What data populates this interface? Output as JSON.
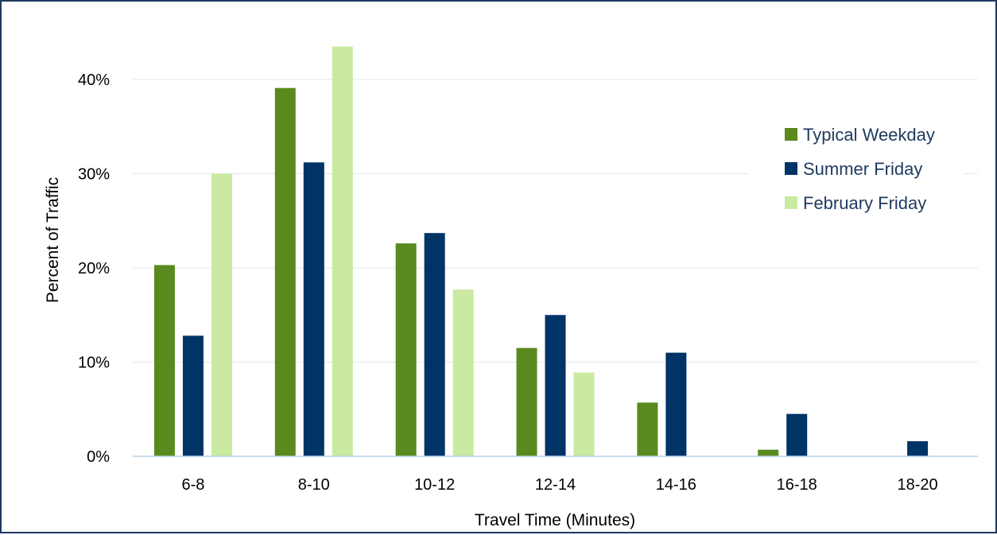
{
  "colors": {
    "typical_weekday": "#5a8a1e",
    "summer_friday": "#003366",
    "february_friday": "#c9eaa0",
    "gridline": "#e6e6e6",
    "axis": "#b7d0e6",
    "frame": "#1f3a5f"
  },
  "chart_data": {
    "type": "bar",
    "title": "",
    "xlabel": "Travel Time (Minutes)",
    "ylabel": "Percent of Traffic",
    "categories": [
      "6-8",
      "8-10",
      "10-12",
      "12-14",
      "14-16",
      "16-18",
      "18-20"
    ],
    "y_ticks": [
      "0%",
      "10%",
      "20%",
      "30%",
      "40%"
    ],
    "ylim": [
      0,
      45
    ],
    "grid": true,
    "legend_position": "right",
    "series": [
      {
        "name": "Typical Weekday",
        "color": "#5a8a1e",
        "values": [
          20.3,
          39.1,
          22.6,
          11.5,
          5.7,
          0.7,
          0
        ]
      },
      {
        "name": "Summer Friday",
        "color": "#003366",
        "values": [
          12.8,
          31.2,
          23.7,
          15.0,
          11.0,
          4.5,
          1.6
        ]
      },
      {
        "name": "February Friday",
        "color": "#c9eaa0",
        "values": [
          30.0,
          43.5,
          17.7,
          8.9,
          0,
          0,
          0
        ]
      }
    ]
  }
}
